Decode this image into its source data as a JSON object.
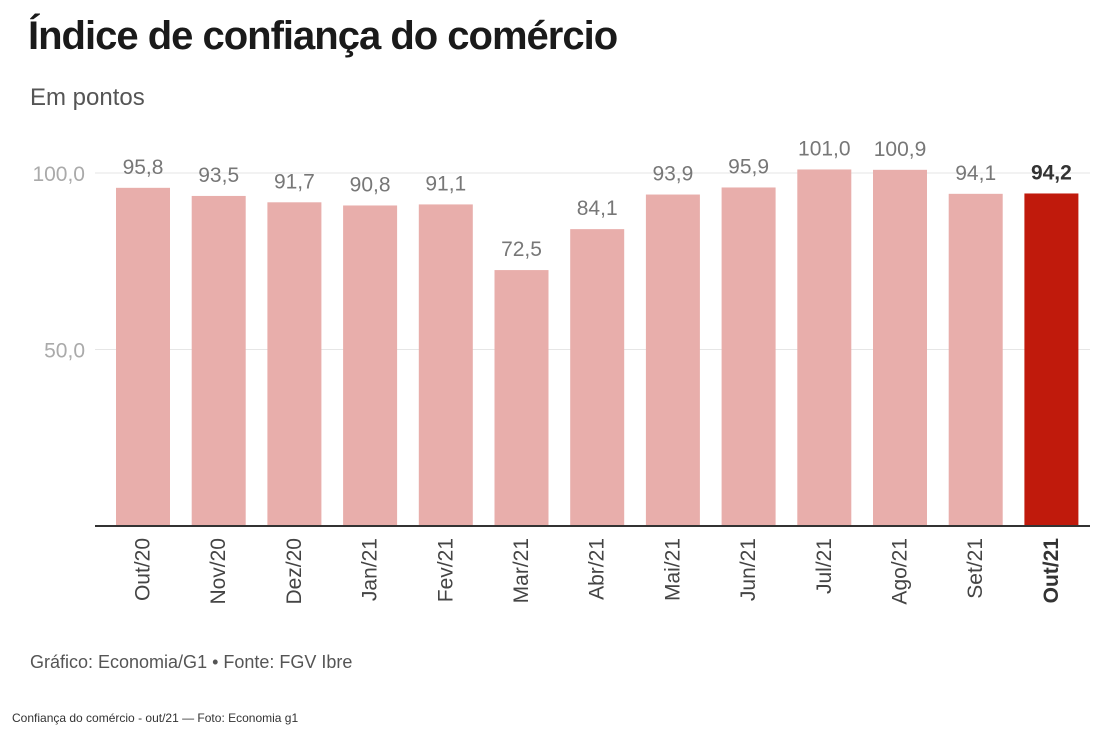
{
  "chart": {
    "title": "Índice de confiança do comércio",
    "subtitle": "Em pontos",
    "source": "Gráfico: Economia/G1 • Fonte: FGV Ibre"
  },
  "caption": "Confiança do comércio - out/21 — Foto: Economia g1",
  "colors": {
    "bar": "#e8aeab",
    "highlight": "#c01a0c",
    "axis_text": "#aaaaaa",
    "value_text": "#777777",
    "category_text": "#444444",
    "highlight_text": "#333333",
    "grid": "#e6e6e6",
    "baseline": "#333333"
  },
  "chart_data": {
    "type": "bar",
    "title": "Índice de confiança do comércio",
    "subtitle": "Em pontos",
    "categories": [
      "Out/20",
      "Nov/20",
      "Dez/20",
      "Jan/21",
      "Fev/21",
      "Mar/21",
      "Abr/21",
      "Mai/21",
      "Jun/21",
      "Jul/21",
      "Ago/21",
      "Set/21",
      "Out/21"
    ],
    "values": [
      95.8,
      93.5,
      91.7,
      90.8,
      91.1,
      72.5,
      84.1,
      93.9,
      95.9,
      101.0,
      100.9,
      94.1,
      94.2
    ],
    "value_labels": [
      "95,8",
      "93,5",
      "91,7",
      "90,8",
      "91,1",
      "72,5",
      "84,1",
      "93,9",
      "95,9",
      "101,0",
      "100,9",
      "94,1",
      "94,2"
    ],
    "highlight_index": 12,
    "y_ticks": [
      50,
      100
    ],
    "y_tick_labels": [
      "50,0",
      "100,0"
    ],
    "ylim": [
      0,
      100
    ],
    "grid": true,
    "legend": "none"
  }
}
